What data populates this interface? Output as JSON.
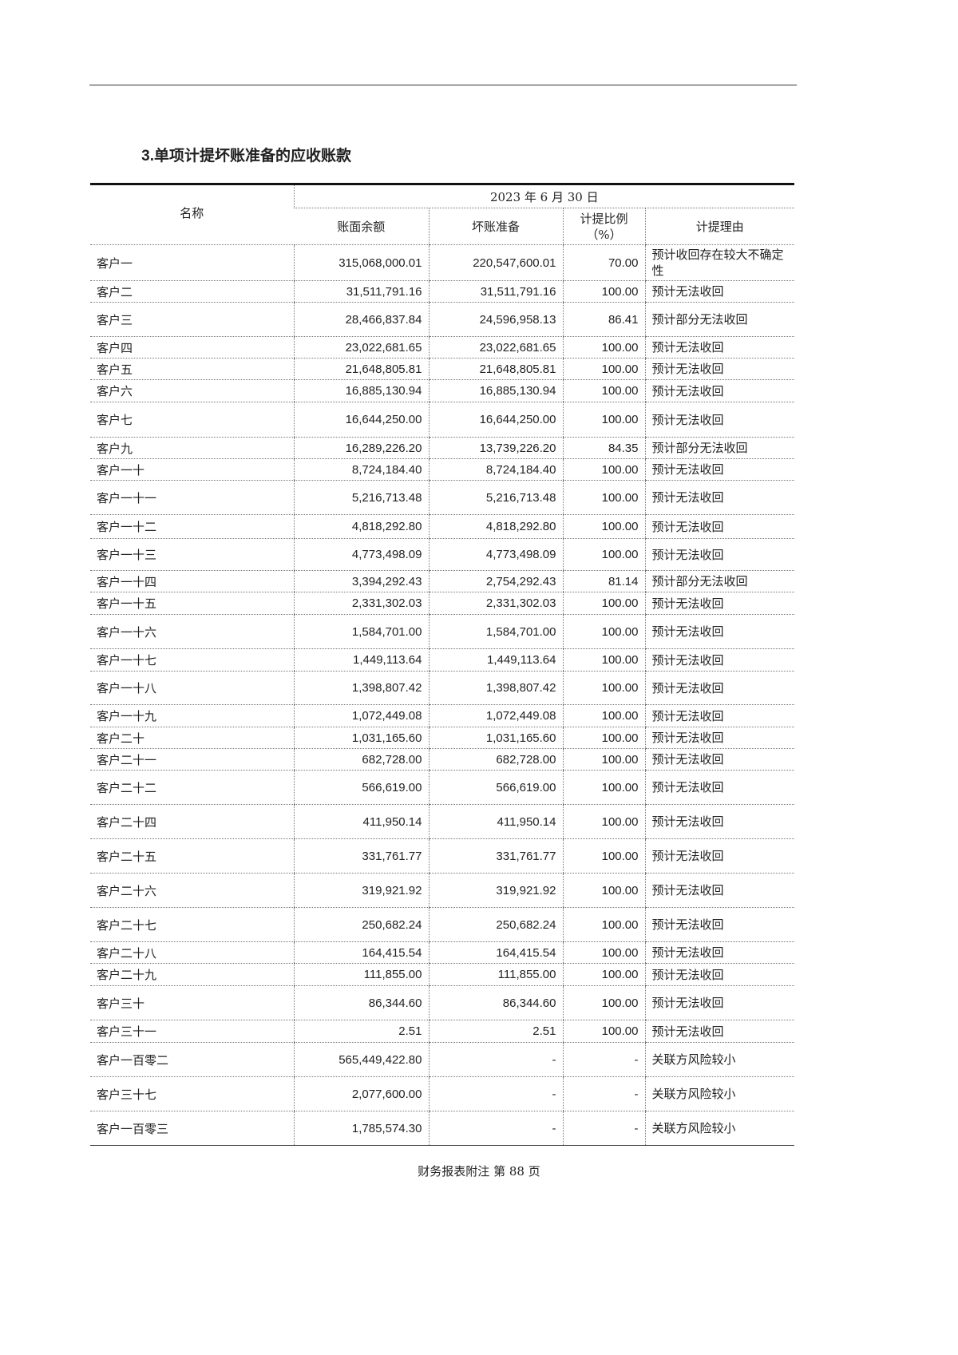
{
  "section": {
    "number": "3.",
    "title": "单项计提坏账准备的应收账款"
  },
  "table": {
    "headers": {
      "name": "名称",
      "date_group": "2023 年 6 月 30 日",
      "book_balance": "账面余额",
      "bad_debt": "坏账准备",
      "ratio": "计提比例（%）",
      "reason": "计提理由"
    },
    "rows": [
      [
        "客户一",
        "315,068,000.01",
        "220,547,600.01",
        "70.00",
        "预计收回存在较大不确定性"
      ],
      [
        "客户二",
        "31,511,791.16",
        "31,511,791.16",
        "100.00",
        "预计无法收回"
      ],
      [
        "客户三",
        "28,466,837.84",
        "24,596,958.13",
        "86.41",
        "预计部分无法收回"
      ],
      [
        "客户四",
        "23,022,681.65",
        "23,022,681.65",
        "100.00",
        "预计无法收回"
      ],
      [
        "客户五",
        "21,648,805.81",
        "21,648,805.81",
        "100.00",
        "预计无法收回"
      ],
      [
        "客户六",
        "16,885,130.94",
        "16,885,130.94",
        "100.00",
        "预计无法收回"
      ],
      [
        "客户七",
        "16,644,250.00",
        "16,644,250.00",
        "100.00",
        "预计无法收回"
      ],
      [
        "客户九",
        "16,289,226.20",
        "13,739,226.20",
        "84.35",
        "预计部分无法收回"
      ],
      [
        "客户一十",
        "8,724,184.40",
        "8,724,184.40",
        "100.00",
        "预计无法收回"
      ],
      [
        "客户一十一",
        "5,216,713.48",
        "5,216,713.48",
        "100.00",
        "预计无法收回"
      ],
      [
        "客户一十二",
        "4,818,292.80",
        "4,818,292.80",
        "100.00",
        "预计无法收回"
      ],
      [
        "客户一十三",
        "4,773,498.09",
        "4,773,498.09",
        "100.00",
        "预计无法收回"
      ],
      [
        "客户一十四",
        "3,394,292.43",
        "2,754,292.43",
        "81.14",
        "预计部分无法收回"
      ],
      [
        "客户一十五",
        "2,331,302.03",
        "2,331,302.03",
        "100.00",
        "预计无法收回"
      ],
      [
        "客户一十六",
        "1,584,701.00",
        "1,584,701.00",
        "100.00",
        "预计无法收回"
      ],
      [
        "客户一十七",
        "1,449,113.64",
        "1,449,113.64",
        "100.00",
        "预计无法收回"
      ],
      [
        "客户一十八",
        "1,398,807.42",
        "1,398,807.42",
        "100.00",
        "预计无法收回"
      ],
      [
        "客户一十九",
        "1,072,449.08",
        "1,072,449.08",
        "100.00",
        "预计无法收回"
      ],
      [
        "客户二十",
        "1,031,165.60",
        "1,031,165.60",
        "100.00",
        "预计无法收回"
      ],
      [
        "客户二十一",
        "682,728.00",
        "682,728.00",
        "100.00",
        "预计无法收回"
      ],
      [
        "客户二十二",
        "566,619.00",
        "566,619.00",
        "100.00",
        "预计无法收回"
      ],
      [
        "客户二十四",
        "411,950.14",
        "411,950.14",
        "100.00",
        "预计无法收回"
      ],
      [
        "客户二十五",
        "331,761.77",
        "331,761.77",
        "100.00",
        "预计无法收回"
      ],
      [
        "客户二十六",
        "319,921.92",
        "319,921.92",
        "100.00",
        "预计无法收回"
      ],
      [
        "客户二十七",
        "250,682.24",
        "250,682.24",
        "100.00",
        "预计无法收回"
      ],
      [
        "客户二十八",
        "164,415.54",
        "164,415.54",
        "100.00",
        "预计无法收回"
      ],
      [
        "客户二十九",
        "111,855.00",
        "111,855.00",
        "100.00",
        "预计无法收回"
      ],
      [
        "客户三十",
        "86,344.60",
        "86,344.60",
        "100.00",
        "预计无法收回"
      ],
      [
        "客户三十一",
        "2.51",
        "2.51",
        "100.00",
        "预计无法收回"
      ],
      [
        "客户一百零二",
        "565,449,422.80",
        "-",
        "-",
        "关联方风险较小"
      ],
      [
        "客户三十七",
        "2,077,600.00",
        "-",
        "-",
        "关联方风险较小"
      ],
      [
        "客户一百零三",
        "1,785,574.30",
        "-",
        "-",
        "关联方风险较小"
      ]
    ]
  },
  "footer": "财务报表附注 第 88 页"
}
